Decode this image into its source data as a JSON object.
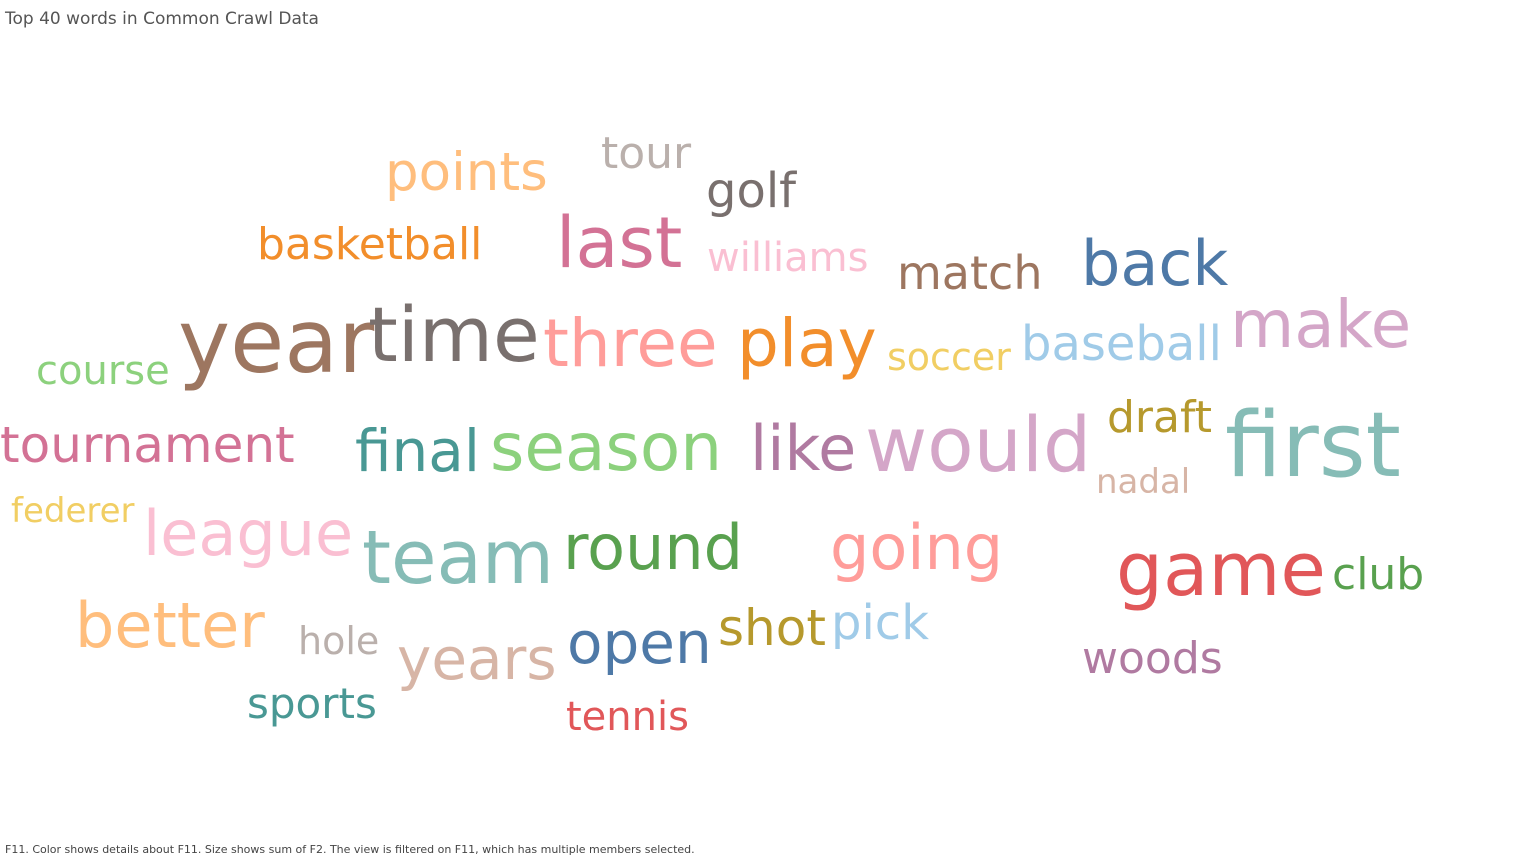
{
  "title": "Top 40 words in Common Crawl Data",
  "caption": "F11.  Color shows details about F11.  Size shows sum of F2. The view is filtered on F11, which has multiple members selected.",
  "chart_data": {
    "type": "wordcloud",
    "title": "Top 40 words in Common Crawl Data",
    "color_field": "F11",
    "size_field": "F2",
    "words": [
      {
        "text": "tour",
        "color": "#BAB0AC"
      },
      {
        "text": "points",
        "color": "#FFBE7D"
      },
      {
        "text": "golf",
        "color": "#79706E"
      },
      {
        "text": "basketball",
        "color": "#F28E2B"
      },
      {
        "text": "last",
        "color": "#D37295"
      },
      {
        "text": "williams",
        "color": "#FABFD2"
      },
      {
        "text": "match",
        "color": "#9D7660"
      },
      {
        "text": "back",
        "color": "#4E79A7"
      },
      {
        "text": "year",
        "color": "#9D7660"
      },
      {
        "text": "time",
        "color": "#79706E"
      },
      {
        "text": "three",
        "color": "#FF9D9A"
      },
      {
        "text": "play",
        "color": "#F28E2B"
      },
      {
        "text": "soccer",
        "color": "#F1CE63"
      },
      {
        "text": "baseball",
        "color": "#A0CBE8"
      },
      {
        "text": "make",
        "color": "#D4A6C8"
      },
      {
        "text": "course",
        "color": "#8CD17D"
      },
      {
        "text": "tournament",
        "color": "#D37295"
      },
      {
        "text": "final",
        "color": "#499894"
      },
      {
        "text": "season",
        "color": "#8CD17D"
      },
      {
        "text": "like",
        "color": "#B07AA1"
      },
      {
        "text": "would",
        "color": "#D4A6C8"
      },
      {
        "text": "draft",
        "color": "#B6992D"
      },
      {
        "text": "first",
        "color": "#86BCB6"
      },
      {
        "text": "nadal",
        "color": "#D7B5A6"
      },
      {
        "text": "federer",
        "color": "#F1CE63"
      },
      {
        "text": "league",
        "color": "#FABFD2"
      },
      {
        "text": "team",
        "color": "#86BCB6"
      },
      {
        "text": "round",
        "color": "#59A14F"
      },
      {
        "text": "going",
        "color": "#FF9D9A"
      },
      {
        "text": "game",
        "color": "#E15759"
      },
      {
        "text": "club",
        "color": "#59A14F"
      },
      {
        "text": "better",
        "color": "#FFBE7D"
      },
      {
        "text": "hole",
        "color": "#BAB0AC"
      },
      {
        "text": "years",
        "color": "#D7B5A6"
      },
      {
        "text": "open",
        "color": "#4E79A7"
      },
      {
        "text": "shot",
        "color": "#B6992D"
      },
      {
        "text": "pick",
        "color": "#A0CBE8"
      },
      {
        "text": "woods",
        "color": "#B07AA1"
      },
      {
        "text": "sports",
        "color": "#499894"
      },
      {
        "text": "tennis",
        "color": "#E15759"
      }
    ]
  }
}
